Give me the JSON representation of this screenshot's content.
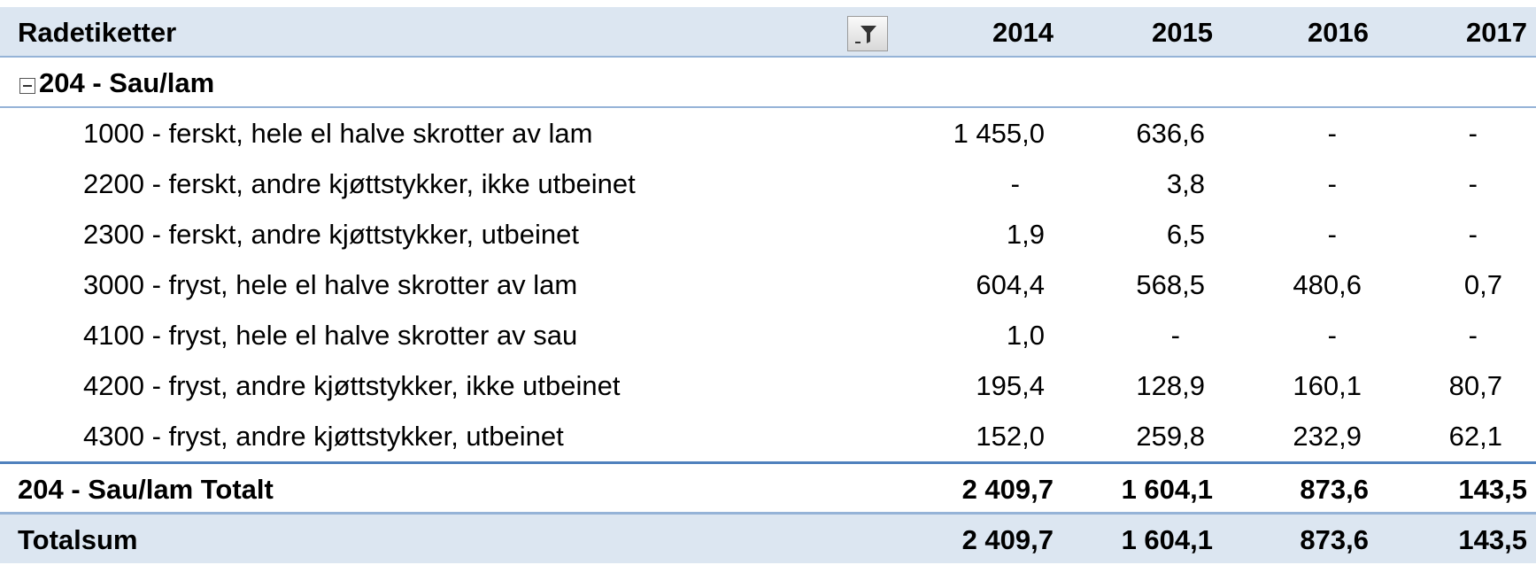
{
  "table": {
    "header": [
      "Radetiketter",
      "2014",
      "2015",
      "2016",
      "2017"
    ],
    "group": "204 - Sau/lam",
    "rows": [
      [
        "1000 - ferskt, hele el halve skrotter av lam",
        "1 455,0",
        "636,6",
        "-",
        "-"
      ],
      [
        "2200 - ferskt, andre kjøttstykker, ikke utbeinet",
        "-",
        "3,8",
        "-",
        "-"
      ],
      [
        "2300 - ferskt, andre kjøttstykker, utbeinet",
        "1,9",
        "6,5",
        "-",
        "-"
      ],
      [
        "3000 - fryst, hele el halve skrotter av lam",
        "604,4",
        "568,5",
        "480,6",
        "0,7"
      ],
      [
        "4100 - fryst, hele el halve skrotter av sau",
        "1,0",
        "-",
        "-",
        "-"
      ],
      [
        "4200 - fryst, andre kjøttstykker, ikke utbeinet",
        "195,4",
        "128,9",
        "160,1",
        "80,7"
      ],
      [
        "4300 - fryst, andre kjøttstykker, utbeinet",
        "152,0",
        "259,8",
        "232,9",
        "62,1"
      ]
    ],
    "subtotal": [
      "204 - Sau/lam Totalt",
      "2 409,7",
      "1 604,1",
      "873,6",
      "143,5"
    ],
    "total": [
      "Totalsum",
      "2 409,7",
      "1 604,1",
      "873,6",
      "143,5"
    ]
  }
}
